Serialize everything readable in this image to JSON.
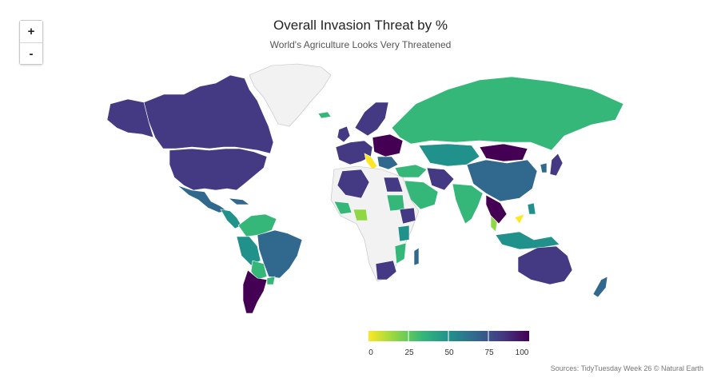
{
  "title": "Overall Invasion Threat by %",
  "subtitle": "World's Agriculture Looks Very Threatened",
  "zoom": {
    "in_label": "+",
    "out_label": "-"
  },
  "legend": {
    "ticks": [
      "0",
      "25",
      "50",
      "75",
      "100"
    ],
    "colors": [
      "#fde725",
      "#8fd744",
      "#35b779",
      "#21918c",
      "#31688e",
      "#443983",
      "#440154"
    ]
  },
  "source": "Sources: TidyTuesday Week 26 © Natural Earth",
  "colors": {
    "no_data": "#f2f2f2",
    "border": "#bfbfbf",
    "ocean": "#ffffff"
  }
}
